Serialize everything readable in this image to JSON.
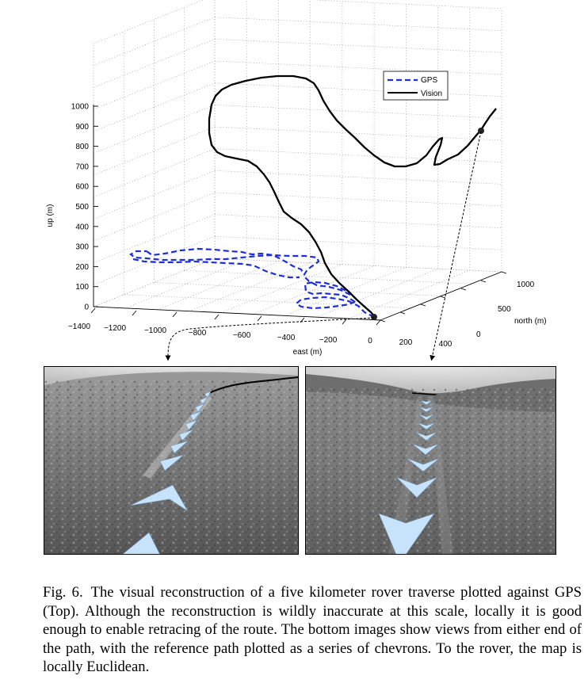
{
  "figure": {
    "legend": {
      "gps_label": "GPS",
      "vision_label": "Vision"
    },
    "axes": {
      "up_label": "up (m)",
      "east_label": "east (m)",
      "north_label": "north (m)",
      "up_ticks": [
        "1000",
        "900",
        "800",
        "700",
        "600",
        "500",
        "400",
        "300",
        "200",
        "100",
        "0"
      ],
      "east_ticks": [
        "−1400",
        "−1200",
        "−1000",
        "−800",
        "−600",
        "−400",
        "−200",
        "0",
        "200",
        "400"
      ],
      "north_ticks": [
        "1000",
        "500",
        "0"
      ]
    },
    "colors": {
      "gps": "#1f2fd6",
      "vision": "#000000",
      "chevron": "#c6e3fb"
    }
  },
  "caption": {
    "label": "Fig. 6.",
    "text": "The visual reconstruction of a five kilometer rover traverse plotted against GPS (Top). Although the reconstruction is wildly inaccurate at this scale, locally it is good enough to enable retracing of the route. The bottom images show views from either end of the path, with the reference path plotted as a series of chevrons. To the rover, the map is locally Euclidean."
  }
}
